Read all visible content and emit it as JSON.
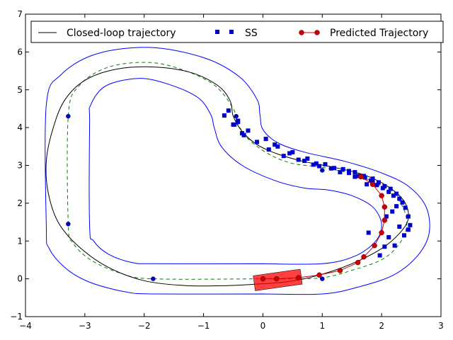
{
  "chart_data": {
    "type": "line",
    "xlim": [
      -4,
      3
    ],
    "ylim": [
      -1,
      7
    ],
    "x_ticks": [
      -4,
      -3,
      -2,
      -1,
      0,
      1,
      2,
      3
    ],
    "y_ticks": [
      -1,
      0,
      1,
      2,
      3,
      4,
      5,
      6,
      7
    ],
    "x_tick_labels": [
      "−4",
      "−3",
      "−2",
      "−1",
      "0",
      "1",
      "2",
      "3"
    ],
    "y_tick_labels": [
      "−1",
      "0",
      "1",
      "2",
      "3",
      "4",
      "5",
      "6",
      "7"
    ],
    "grid": false,
    "legend_position": "top",
    "legend": [
      {
        "label": "Closed-loop trajectory",
        "color": "#000000",
        "style": "line"
      },
      {
        "label": "SS",
        "color": "#0000cc",
        "style": "square"
      },
      {
        "label": "Predicted Trajectory",
        "color": "#cc0000",
        "style": "line-circle"
      }
    ],
    "track": {
      "outer_boundary": [
        [
          0,
          -0.4
        ],
        [
          1,
          -0.4
        ],
        [
          1.6,
          -0.22
        ],
        [
          2.2,
          0.1
        ],
        [
          2.6,
          0.6
        ],
        [
          2.8,
          1.2
        ],
        [
          2.75,
          1.9
        ],
        [
          2.45,
          2.45
        ],
        [
          2,
          2.8
        ],
        [
          1.4,
          3.1
        ],
        [
          0.7,
          3.35
        ],
        [
          0.25,
          3.6
        ],
        [
          0,
          3.95
        ],
        [
          -0.05,
          4.35
        ],
        [
          -0.1,
          4.75
        ],
        [
          -0.4,
          5.35
        ],
        [
          -1,
          5.85
        ],
        [
          -1.9,
          6.12
        ],
        [
          -2.8,
          5.95
        ],
        [
          -3.4,
          5.4
        ],
        [
          -3.65,
          4.6
        ],
        [
          -3.65,
          1.4
        ],
        [
          -3.6,
          0.8
        ],
        [
          -3.3,
          0.25
        ],
        [
          -2.9,
          -0.1
        ],
        [
          -2.3,
          -0.35
        ],
        [
          -1.8,
          -0.4
        ],
        [
          0,
          -0.4
        ]
      ],
      "inner_boundary": [
        [
          0,
          0.4
        ],
        [
          1,
          0.4
        ],
        [
          1.55,
          0.6
        ],
        [
          1.9,
          1.0
        ],
        [
          2.0,
          1.45
        ],
        [
          1.85,
          1.9
        ],
        [
          1.5,
          2.2
        ],
        [
          1.1,
          2.35
        ],
        [
          0.7,
          2.4
        ],
        [
          0.2,
          2.6
        ],
        [
          -0.35,
          3.0
        ],
        [
          -0.7,
          3.5
        ],
        [
          -0.82,
          4.0
        ],
        [
          -0.88,
          4.35
        ],
        [
          -1.1,
          4.8
        ],
        [
          -1.6,
          5.15
        ],
        [
          -2.1,
          5.3
        ],
        [
          -2.65,
          5.1
        ],
        [
          -2.9,
          4.6
        ],
        [
          -2.92,
          4.1
        ],
        [
          -2.92,
          1.4
        ],
        [
          -2.85,
          1.0
        ],
        [
          -2.6,
          0.65
        ],
        [
          -2.2,
          0.43
        ],
        [
          -1.8,
          0.4
        ],
        [
          0,
          0.4
        ]
      ],
      "center_line": [
        [
          0,
          0
        ],
        [
          0.95,
          0.02
        ],
        [
          1.55,
          0.25
        ],
        [
          2.05,
          0.55
        ],
        [
          2.35,
          1.05
        ],
        [
          2.42,
          1.55
        ],
        [
          2.3,
          2.05
        ],
        [
          2.0,
          2.45
        ],
        [
          1.55,
          2.75
        ],
        [
          1.0,
          2.95
        ],
        [
          0.5,
          3.05
        ],
        [
          0.1,
          3.3
        ],
        [
          -0.25,
          3.7
        ],
        [
          -0.42,
          4.1
        ],
        [
          -0.5,
          4.5
        ],
        [
          -0.8,
          5.1
        ],
        [
          -1.3,
          5.5
        ],
        [
          -1.9,
          5.72
        ],
        [
          -2.6,
          5.6
        ],
        [
          -3.1,
          5.1
        ],
        [
          -3.28,
          4.3
        ],
        [
          -3.28,
          1.45
        ],
        [
          -3.2,
          0.95
        ],
        [
          -2.9,
          0.5
        ],
        [
          -2.4,
          0.15
        ],
        [
          -1.85,
          0.0
        ],
        [
          0,
          0
        ]
      ]
    },
    "closed_loop_trajectory": {
      "x": [
        -0.2,
        0.4,
        0.95,
        1.5,
        2.0,
        2.3,
        2.45,
        2.38,
        2.1,
        1.7,
        1.2,
        0.7,
        0.25,
        -0.1,
        -0.35,
        -0.5,
        -0.55,
        -0.75,
        -1.2,
        -1.8,
        -2.45,
        -3.0,
        -3.35,
        -3.55,
        -3.65,
        -3.62,
        -3.45,
        -3.1,
        -2.6,
        -2.0,
        -1.3,
        -0.6,
        -0.2
      ],
      "y": [
        -0.15,
        -0.08,
        0.1,
        0.4,
        0.8,
        1.2,
        1.6,
        2.05,
        2.45,
        2.75,
        2.95,
        3.1,
        3.3,
        3.55,
        3.9,
        4.3,
        4.7,
        5.1,
        5.45,
        5.6,
        5.55,
        5.25,
        4.7,
        3.9,
        3.1,
        2.3,
        1.5,
        0.85,
        0.3,
        -0.05,
        -0.18,
        -0.18,
        -0.15
      ]
    },
    "ss_points": {
      "x": [
        -0.65,
        -0.58,
        -0.48,
        -0.42,
        -0.35,
        -0.25,
        -0.1,
        0.05,
        0.25,
        0.45,
        0.6,
        0.75,
        0.9,
        1.05,
        1.2,
        1.35,
        1.45,
        1.55,
        1.7,
        1.85,
        1.95,
        2.05,
        2.15,
        2.25,
        2.3,
        2.35,
        2.4,
        2.45,
        2.48,
        2.45,
        2.38,
        2.3,
        2.22,
        2.12,
        2.05,
        1.97,
        1.85,
        1.75,
        1.65,
        1.55,
        -0.5,
        -0.42,
        -0.32,
        0.1,
        0.2,
        0.35,
        0.5,
        0.7,
        0.85,
        0.95,
        1.15,
        1.3,
        1.45,
        1.6,
        1.72,
        1.82,
        1.92,
        2.02,
        2.12,
        2.2,
        2.25,
        2.18,
        2.08,
        1.78
      ],
      "y": [
        4.32,
        4.45,
        4.08,
        4.18,
        3.85,
        3.92,
        3.62,
        3.7,
        3.5,
        3.32,
        3.15,
        3.18,
        3.05,
        3.03,
        2.93,
        2.9,
        2.85,
        2.82,
        2.72,
        2.65,
        2.55,
        2.45,
        2.38,
        2.25,
        2.12,
        2.02,
        1.88,
        1.65,
        1.42,
        1.3,
        1.15,
        1.38,
        0.88,
        1.1,
        0.85,
        0.62,
        2.55,
        2.5,
        2.72,
        2.7,
        4.08,
        4.15,
        3.8,
        3.42,
        3.55,
        3.25,
        3.35,
        3.12,
        3.02,
        2.98,
        2.92,
        2.82,
        2.8,
        2.72,
        2.68,
        2.6,
        2.48,
        2.4,
        2.3,
        2.2,
        1.92,
        1.78,
        1.65,
        1.22
      ]
    },
    "predicted_trajectory": {
      "x": [
        0,
        0.23,
        0.6,
        0.95,
        1.3,
        1.6,
        1.7,
        1.88,
        2.0,
        2.05,
        2.05,
        2.0,
        1.85,
        1.65
      ],
      "y": [
        0,
        0.0,
        0.03,
        0.1,
        0.22,
        0.43,
        0.58,
        0.88,
        1.22,
        1.55,
        1.9,
        2.2,
        2.5,
        2.7
      ]
    },
    "track_markers": {
      "x": [
        -3.28,
        -3.28,
        -1.85,
        1.0,
        1.0,
        -0.45
      ],
      "y": [
        4.3,
        1.45,
        0.0,
        0.0,
        2.87,
        4.3
      ]
    },
    "vehicle": {
      "center": [
        0.25,
        -0.03
      ],
      "length": 0.8,
      "width": 0.4,
      "angle_deg": 8,
      "color": "#ff0000"
    }
  }
}
